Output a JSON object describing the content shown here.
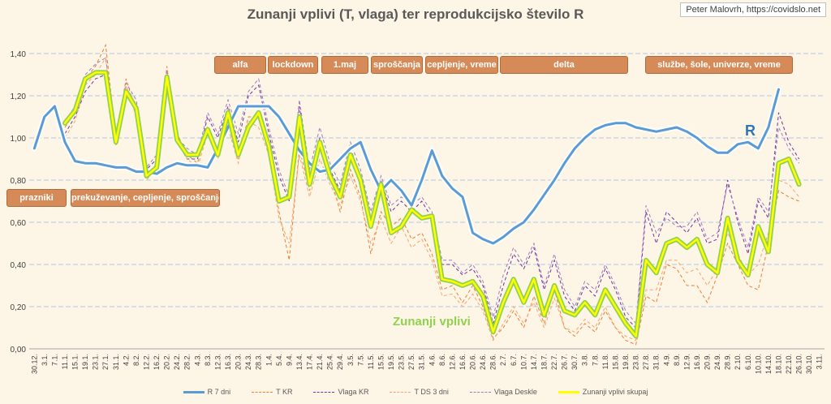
{
  "title": "Zunanji vplivi (T, vlaga) ter reprodukcijsko število R",
  "credit": "Peter Malovrh, https://covidslo.net",
  "annotations": {
    "r_label": "R",
    "zunanji_label": "Zunanji vplivi"
  },
  "period_tags": [
    "alfa",
    "lockdown",
    "1.maj",
    "sproščanja",
    "cepljenje, vreme",
    "delta",
    "službe, šole, univerze, vreme",
    "prazniki",
    "prekuževanje, cepljenje, sproščanje"
  ],
  "colors": {
    "r": "#5b9bd5",
    "t": "#ed7d31",
    "vlaga": "#7030a0",
    "zunanji": "#ffff00",
    "zunanji_outline": "#92d050",
    "grid": "#b4c7e7",
    "tag": "#d68a58"
  },
  "chart_data": {
    "type": "line",
    "title": "Zunanji vplivi (T, vlaga) ter reprodukcijsko število R",
    "ylim": [
      0,
      1.5
    ],
    "yticks": [
      "0,00",
      "0,20",
      "0,40",
      "0,60",
      "0,80",
      "1,00",
      "1,20",
      "1,40"
    ],
    "x_labels": [
      "30.12.",
      "3.1.",
      "7.1.",
      "11.1.",
      "15.1.",
      "19.1.",
      "23.1.",
      "27.1.",
      "31.1.",
      "4.2.",
      "8.2.",
      "12.2.",
      "16.2.",
      "20.2.",
      "24.2.",
      "28.2.",
      "4.3.",
      "8.3.",
      "12.3.",
      "16.3.",
      "20.3.",
      "24.3.",
      "28.3.",
      "1.4.",
      "5.4.",
      "9.4.",
      "13.4.",
      "17.4.",
      "21.4.",
      "25.4.",
      "29.4.",
      "3.5.",
      "7.5.",
      "11.5.",
      "15.5.",
      "19.5.",
      "23.5.",
      "27.5.",
      "31.5.",
      "4.6.",
      "8.6.",
      "12.6.",
      "16.6.",
      "20.6.",
      "24.6.",
      "28.6.",
      "2.7.",
      "6.7.",
      "10.7.",
      "14.7.",
      "18.7.",
      "22.7.",
      "26.7.",
      "30.7.",
      "3.8.",
      "7.8.",
      "11.8.",
      "15.8.",
      "19.8.",
      "23.8.",
      "27.8.",
      "31.8.",
      "4.9.",
      "8.9.",
      "12.9.",
      "16.9.",
      "20.9.",
      "24.9.",
      "28.9.",
      "2.10.",
      "6.10.",
      "10.10.",
      "14.10.",
      "18.10.",
      "22.10.",
      "26.10.",
      "30.10.",
      "3.11."
    ],
    "series": [
      {
        "name": "R 7 dni",
        "style": "solid",
        "values": [
          0.95,
          1.1,
          1.15,
          0.98,
          0.89,
          0.88,
          0.88,
          0.87,
          0.86,
          0.86,
          0.84,
          0.84,
          0.83,
          0.86,
          0.88,
          0.87,
          0.87,
          0.86,
          0.95,
          1.05,
          1.15,
          1.15,
          1.15,
          1.15,
          1.1,
          1.02,
          0.94,
          0.88,
          0.84,
          0.85,
          0.9,
          0.95,
          0.98,
          0.85,
          0.75,
          0.8,
          0.75,
          0.68,
          0.8,
          0.94,
          0.82,
          0.76,
          0.72,
          0.55,
          0.52,
          0.5,
          0.53,
          0.57,
          0.6,
          0.66,
          0.73,
          0.8,
          0.88,
          0.95,
          1.0,
          1.04,
          1.06,
          1.07,
          1.07,
          1.05,
          1.04,
          1.03,
          1.04,
          1.05,
          1.03,
          1.0,
          0.96,
          0.93,
          0.93,
          0.97,
          0.98,
          0.95,
          1.05,
          1.23,
          null,
          null,
          null,
          null
        ]
      },
      {
        "name": "T KR",
        "style": "dash",
        "values": [
          null,
          null,
          null,
          1.05,
          1.12,
          1.28,
          1.34,
          1.44,
          1.0,
          1.28,
          1.12,
          0.82,
          0.85,
          1.34,
          1.02,
          0.92,
          0.88,
          1.05,
          0.95,
          1.08,
          0.9,
          1.1,
          1.1,
          0.95,
          0.65,
          0.42,
          0.95,
          0.75,
          0.95,
          0.82,
          0.65,
          0.85,
          0.72,
          0.45,
          0.65,
          0.58,
          0.62,
          0.52,
          0.55,
          0.45,
          0.28,
          0.3,
          0.22,
          0.3,
          0.2,
          0.05,
          0.1,
          0.18,
          0.1,
          0.25,
          0.12,
          0.28,
          0.1,
          0.06,
          0.12,
          0.08,
          0.18,
          0.1,
          0.04,
          0.02,
          0.25,
          0.22,
          0.4,
          0.38,
          0.3,
          0.3,
          0.22,
          0.35,
          0.5,
          0.4,
          0.3,
          0.28,
          0.5,
          0.75,
          0.72,
          0.7,
          null,
          null
        ]
      },
      {
        "name": "Vlaga KR",
        "style": "dash",
        "values": [
          null,
          null,
          null,
          1.02,
          1.1,
          1.22,
          1.28,
          1.3,
          0.98,
          1.22,
          1.15,
          0.85,
          0.9,
          1.28,
          0.98,
          0.9,
          0.9,
          1.1,
          1.0,
          1.15,
          0.98,
          1.2,
          1.25,
          1.02,
          0.82,
          0.7,
          1.15,
          0.82,
          1.0,
          0.85,
          0.75,
          0.95,
          0.82,
          0.62,
          0.8,
          0.65,
          0.7,
          0.65,
          0.7,
          0.62,
          0.4,
          0.4,
          0.35,
          0.38,
          0.3,
          0.12,
          0.3,
          0.45,
          0.38,
          0.48,
          0.28,
          0.42,
          0.25,
          0.18,
          0.3,
          0.25,
          0.38,
          0.28,
          0.15,
          0.1,
          0.65,
          0.5,
          0.65,
          0.6,
          0.55,
          0.62,
          0.5,
          0.52,
          0.8,
          0.6,
          0.45,
          0.7,
          0.62,
          1.12,
          0.98,
          0.9,
          null,
          null
        ]
      },
      {
        "name": "T DS 3 dni",
        "style": "dash",
        "values": [
          null,
          null,
          null,
          1.0,
          1.08,
          1.25,
          1.3,
          1.38,
          0.96,
          1.25,
          1.1,
          0.8,
          0.86,
          1.3,
          1.0,
          0.9,
          0.86,
          1.02,
          0.9,
          1.05,
          0.88,
          1.08,
          1.05,
          0.92,
          0.62,
          0.5,
          0.92,
          0.72,
          0.9,
          0.78,
          0.68,
          0.82,
          0.7,
          0.5,
          0.62,
          0.5,
          0.58,
          0.48,
          0.52,
          0.42,
          0.25,
          0.26,
          0.2,
          0.26,
          0.18,
          0.04,
          0.12,
          0.2,
          0.12,
          0.22,
          0.1,
          0.24,
          0.1,
          0.08,
          0.14,
          0.1,
          0.2,
          0.1,
          0.06,
          0.04,
          0.28,
          0.28,
          0.42,
          0.42,
          0.36,
          0.38,
          0.3,
          0.38,
          0.55,
          0.45,
          0.35,
          0.4,
          0.55,
          0.8,
          0.78,
          0.72,
          null,
          null
        ]
      },
      {
        "name": "Vlaga Deskle",
        "style": "dash",
        "values": [
          null,
          null,
          null,
          1.08,
          1.15,
          1.3,
          1.35,
          1.38,
          1.02,
          1.26,
          1.18,
          0.86,
          0.92,
          1.32,
          1.0,
          0.95,
          0.92,
          1.12,
          1.02,
          1.18,
          1.02,
          1.22,
          1.28,
          1.05,
          0.85,
          0.72,
          1.18,
          0.85,
          1.05,
          0.88,
          0.78,
          0.98,
          0.85,
          0.65,
          0.82,
          0.68,
          0.72,
          0.68,
          0.72,
          0.65,
          0.42,
          0.42,
          0.36,
          0.4,
          0.32,
          0.15,
          0.35,
          0.48,
          0.4,
          0.5,
          0.3,
          0.45,
          0.28,
          0.2,
          0.32,
          0.28,
          0.4,
          0.3,
          0.18,
          0.12,
          0.68,
          0.55,
          0.62,
          0.58,
          0.58,
          0.65,
          0.52,
          0.55,
          0.78,
          0.62,
          0.48,
          0.72,
          0.65,
          1.05,
          0.95,
          0.88,
          null,
          null
        ]
      },
      {
        "name": "Zunanji vplivi skupaj",
        "style": "thick",
        "values": [
          null,
          null,
          null,
          1.07,
          1.13,
          1.28,
          1.31,
          1.31,
          0.98,
          1.22,
          1.14,
          0.82,
          0.86,
          1.29,
          0.99,
          0.92,
          0.92,
          1.04,
          0.92,
          1.12,
          0.92,
          1.05,
          1.12,
          0.96,
          0.7,
          0.72,
          1.1,
          0.78,
          0.98,
          0.82,
          0.72,
          0.92,
          0.8,
          0.58,
          0.78,
          0.55,
          0.58,
          0.66,
          0.62,
          0.63,
          0.33,
          0.32,
          0.3,
          0.32,
          0.25,
          0.08,
          0.22,
          0.33,
          0.22,
          0.33,
          0.16,
          0.3,
          0.18,
          0.16,
          0.22,
          0.16,
          0.28,
          0.2,
          0.12,
          0.06,
          0.42,
          0.36,
          0.5,
          0.52,
          0.48,
          0.52,
          0.4,
          0.36,
          0.62,
          0.42,
          0.35,
          0.58,
          0.46,
          0.88,
          0.9,
          0.78,
          null,
          null
        ]
      }
    ]
  }
}
